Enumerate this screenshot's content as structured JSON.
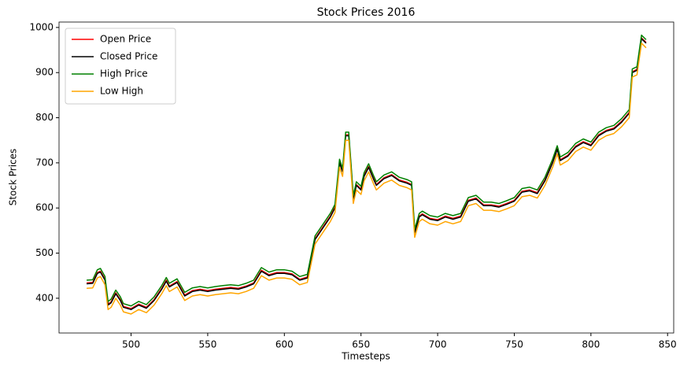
{
  "chart_data": {
    "type": "line",
    "title": "Stock Prices 2016",
    "x_label": "Timesteps",
    "y_label": "Stock Prices",
    "x": [
      471,
      475,
      478,
      480,
      483,
      485,
      487,
      490,
      493,
      495,
      500,
      505,
      510,
      515,
      520,
      523,
      525,
      530,
      535,
      540,
      545,
      550,
      555,
      560,
      565,
      570,
      575,
      580,
      585,
      590,
      595,
      600,
      605,
      610,
      615,
      620,
      625,
      630,
      633,
      636,
      638,
      640,
      642,
      645,
      647,
      650,
      652,
      655,
      658,
      660,
      665,
      670,
      675,
      680,
      683,
      685,
      688,
      690,
      695,
      700,
      705,
      710,
      715,
      720,
      725,
      730,
      735,
      740,
      745,
      750,
      755,
      760,
      765,
      770,
      775,
      778,
      780,
      785,
      790,
      795,
      800,
      805,
      810,
      815,
      820,
      825,
      827,
      830,
      833,
      836
    ],
    "series": [
      {
        "name": "Open Price",
        "color": "#ff0000",
        "values": [
          434,
          435,
          457,
          460,
          442,
          387,
          392,
          412,
          397,
          382,
          377,
          387,
          380,
          397,
          422,
          440,
          427,
          437,
          407,
          417,
          420,
          417,
          420,
          422,
          424,
          422,
          427,
          434,
          462,
          452,
          457,
          457,
          454,
          442,
          447,
          532,
          557,
          582,
          602,
          702,
          682,
          762,
          762,
          622,
          652,
          642,
          672,
          692,
          667,
          652,
          667,
          674,
          662,
          657,
          652,
          547,
          582,
          587,
          577,
          574,
          582,
          577,
          582,
          617,
          622,
          607,
          607,
          604,
          610,
          617,
          637,
          640,
          634,
          662,
          702,
          732,
          707,
          717,
          737,
          747,
          740,
          762,
          772,
          777,
          792,
          812,
          902,
          907,
          977,
          967
        ]
      },
      {
        "name": "Closed Price",
        "color": "#000000",
        "values": [
          432,
          433,
          455,
          458,
          440,
          385,
          390,
          410,
          395,
          380,
          375,
          385,
          378,
          395,
          420,
          438,
          425,
          435,
          405,
          415,
          418,
          415,
          418,
          420,
          422,
          420,
          425,
          432,
          460,
          450,
          455,
          455,
          452,
          440,
          445,
          530,
          555,
          580,
          600,
          700,
          680,
          760,
          760,
          620,
          650,
          640,
          670,
          690,
          665,
          650,
          665,
          672,
          660,
          655,
          650,
          545,
          580,
          585,
          575,
          572,
          580,
          575,
          580,
          615,
          620,
          605,
          605,
          602,
          608,
          615,
          635,
          638,
          632,
          660,
          700,
          730,
          705,
          715,
          735,
          745,
          738,
          760,
          770,
          775,
          790,
          810,
          900,
          905,
          975,
          965
        ]
      },
      {
        "name": "High Price",
        "color": "#008000",
        "values": [
          440,
          441,
          463,
          466,
          448,
          393,
          398,
          418,
          403,
          388,
          383,
          393,
          386,
          403,
          428,
          446,
          433,
          443,
          413,
          423,
          426,
          423,
          426,
          428,
          430,
          428,
          433,
          440,
          468,
          458,
          463,
          463,
          460,
          448,
          453,
          538,
          563,
          588,
          608,
          708,
          688,
          768,
          768,
          628,
          658,
          648,
          678,
          698,
          673,
          658,
          673,
          680,
          668,
          663,
          658,
          553,
          588,
          593,
          583,
          580,
          588,
          583,
          588,
          623,
          628,
          613,
          613,
          610,
          616,
          623,
          643,
          646,
          640,
          668,
          708,
          738,
          713,
          723,
          743,
          753,
          746,
          768,
          778,
          783,
          798,
          818,
          908,
          913,
          983,
          973
        ]
      },
      {
        "name": "Low High",
        "color": "#ffa500",
        "values": [
          422,
          423,
          445,
          448,
          430,
          375,
          380,
          400,
          385,
          370,
          365,
          375,
          368,
          385,
          410,
          428,
          415,
          425,
          395,
          405,
          408,
          405,
          408,
          410,
          412,
          410,
          415,
          422,
          450,
          440,
          445,
          445,
          442,
          430,
          435,
          520,
          545,
          570,
          590,
          690,
          670,
          750,
          750,
          610,
          640,
          630,
          660,
          680,
          655,
          640,
          655,
          662,
          650,
          645,
          640,
          535,
          570,
          575,
          565,
          562,
          570,
          565,
          570,
          605,
          610,
          595,
          595,
          592,
          598,
          605,
          625,
          628,
          622,
          650,
          690,
          720,
          695,
          705,
          725,
          735,
          728,
          750,
          760,
          765,
          780,
          800,
          890,
          895,
          965,
          955
        ]
      }
    ],
    "xlim": [
      453,
      854
    ],
    "xticks": [
      500,
      550,
      600,
      650,
      700,
      750,
      800,
      850
    ],
    "ylim": [
      323,
      1012
    ],
    "yticks": [
      400,
      500,
      600,
      700,
      800,
      900,
      1000
    ],
    "legend": "upper left",
    "grid": false
  }
}
